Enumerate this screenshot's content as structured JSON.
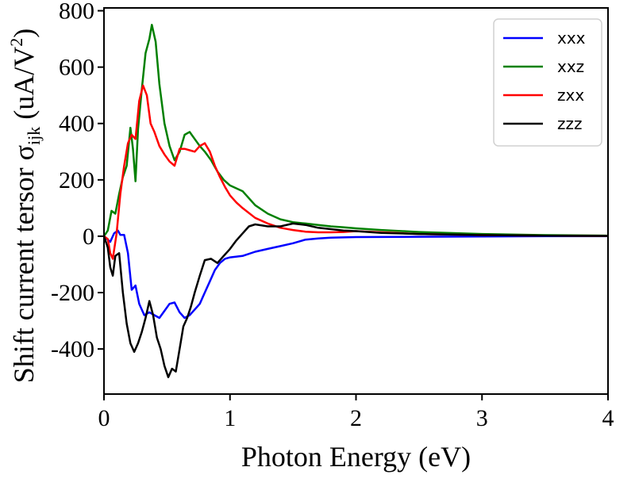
{
  "chart_data": {
    "type": "line",
    "title": "",
    "xlabel": "Photon Energy (eV)",
    "ylabel": {
      "main": "Shift current tersor σ",
      "sub": "ijk",
      "unit_pre": " (uA/V",
      "sup": "2",
      "unit_post": ")"
    },
    "xlim": [
      0,
      4
    ],
    "ylim": [
      -560,
      810
    ],
    "xticks": [
      0,
      1,
      2,
      3,
      4
    ],
    "xtick_labels": [
      "0",
      "1",
      "2",
      "3",
      "4"
    ],
    "yticks": [
      -400,
      -200,
      0,
      200,
      400,
      600,
      800
    ],
    "ytick_labels": [
      "-400",
      "-200",
      "0",
      "200",
      "400",
      "600",
      "800"
    ],
    "grid": false,
    "legend_position": "top-right",
    "series": [
      {
        "name": "xxx",
        "color": "#0000ff",
        "points": [
          [
            0,
            0
          ],
          [
            0.05,
            -20
          ],
          [
            0.08,
            10
          ],
          [
            0.11,
            20
          ],
          [
            0.13,
            5
          ],
          [
            0.16,
            5
          ],
          [
            0.19,
            -60
          ],
          [
            0.22,
            -190
          ],
          [
            0.25,
            -175
          ],
          [
            0.28,
            -240
          ],
          [
            0.32,
            -280
          ],
          [
            0.36,
            -270
          ],
          [
            0.4,
            -280
          ],
          [
            0.44,
            -290
          ],
          [
            0.48,
            -265
          ],
          [
            0.52,
            -240
          ],
          [
            0.56,
            -235
          ],
          [
            0.6,
            -270
          ],
          [
            0.64,
            -290
          ],
          [
            0.68,
            -280
          ],
          [
            0.72,
            -260
          ],
          [
            0.76,
            -240
          ],
          [
            0.8,
            -200
          ],
          [
            0.84,
            -160
          ],
          [
            0.88,
            -120
          ],
          [
            0.92,
            -95
          ],
          [
            0.96,
            -80
          ],
          [
            1.0,
            -75
          ],
          [
            1.1,
            -70
          ],
          [
            1.2,
            -55
          ],
          [
            1.3,
            -45
          ],
          [
            1.4,
            -35
          ],
          [
            1.5,
            -25
          ],
          [
            1.6,
            -12
          ],
          [
            1.7,
            -8
          ],
          [
            1.8,
            -5
          ],
          [
            2.0,
            -3
          ],
          [
            2.5,
            -2
          ],
          [
            3.0,
            -1
          ],
          [
            3.5,
            0
          ],
          [
            4.0,
            0
          ]
        ]
      },
      {
        "name": "xxz",
        "color": "#008000",
        "points": [
          [
            0,
            0
          ],
          [
            0.03,
            20
          ],
          [
            0.06,
            90
          ],
          [
            0.09,
            80
          ],
          [
            0.12,
            150
          ],
          [
            0.15,
            210
          ],
          [
            0.18,
            250
          ],
          [
            0.21,
            385
          ],
          [
            0.23,
            310
          ],
          [
            0.25,
            195
          ],
          [
            0.27,
            380
          ],
          [
            0.3,
            520
          ],
          [
            0.33,
            650
          ],
          [
            0.36,
            700
          ],
          [
            0.38,
            750
          ],
          [
            0.41,
            690
          ],
          [
            0.44,
            540
          ],
          [
            0.48,
            400
          ],
          [
            0.52,
            320
          ],
          [
            0.56,
            270
          ],
          [
            0.6,
            300
          ],
          [
            0.64,
            360
          ],
          [
            0.68,
            370
          ],
          [
            0.72,
            345
          ],
          [
            0.76,
            320
          ],
          [
            0.8,
            300
          ],
          [
            0.85,
            270
          ],
          [
            0.9,
            230
          ],
          [
            0.95,
            200
          ],
          [
            1.0,
            180
          ],
          [
            1.1,
            160
          ],
          [
            1.2,
            110
          ],
          [
            1.3,
            80
          ],
          [
            1.4,
            60
          ],
          [
            1.5,
            50
          ],
          [
            1.6,
            45
          ],
          [
            1.7,
            40
          ],
          [
            1.8,
            35
          ],
          [
            1.9,
            32
          ],
          [
            2.0,
            28
          ],
          [
            2.2,
            22
          ],
          [
            2.5,
            15
          ],
          [
            3.0,
            8
          ],
          [
            3.5,
            4
          ],
          [
            4.0,
            2
          ]
        ]
      },
      {
        "name": "zxx",
        "color": "#ff0000",
        "points": [
          [
            0,
            0
          ],
          [
            0.03,
            -10
          ],
          [
            0.05,
            -60
          ],
          [
            0.07,
            -80
          ],
          [
            0.1,
            10
          ],
          [
            0.13,
            150
          ],
          [
            0.16,
            250
          ],
          [
            0.19,
            330
          ],
          [
            0.22,
            360
          ],
          [
            0.25,
            345
          ],
          [
            0.28,
            480
          ],
          [
            0.31,
            535
          ],
          [
            0.34,
            500
          ],
          [
            0.37,
            400
          ],
          [
            0.4,
            370
          ],
          [
            0.44,
            320
          ],
          [
            0.48,
            290
          ],
          [
            0.52,
            265
          ],
          [
            0.56,
            250
          ],
          [
            0.6,
            310
          ],
          [
            0.64,
            310
          ],
          [
            0.68,
            305
          ],
          [
            0.72,
            300
          ],
          [
            0.76,
            320
          ],
          [
            0.8,
            330
          ],
          [
            0.84,
            300
          ],
          [
            0.88,
            250
          ],
          [
            0.92,
            210
          ],
          [
            0.96,
            175
          ],
          [
            1.0,
            145
          ],
          [
            1.05,
            120
          ],
          [
            1.1,
            100
          ],
          [
            1.2,
            65
          ],
          [
            1.3,
            45
          ],
          [
            1.4,
            30
          ],
          [
            1.5,
            22
          ],
          [
            1.6,
            16
          ],
          [
            1.7,
            14
          ],
          [
            1.8,
            14
          ],
          [
            1.9,
            15
          ],
          [
            2.0,
            18
          ],
          [
            2.2,
            14
          ],
          [
            2.5,
            8
          ],
          [
            3.0,
            4
          ],
          [
            3.5,
            2
          ],
          [
            4.0,
            1
          ]
        ]
      },
      {
        "name": "zzz",
        "color": "#000000",
        "points": [
          [
            0,
            0
          ],
          [
            0.03,
            -40
          ],
          [
            0.05,
            -110
          ],
          [
            0.07,
            -140
          ],
          [
            0.09,
            -70
          ],
          [
            0.12,
            -60
          ],
          [
            0.15,
            -200
          ],
          [
            0.18,
            -310
          ],
          [
            0.21,
            -380
          ],
          [
            0.24,
            -410
          ],
          [
            0.27,
            -380
          ],
          [
            0.3,
            -340
          ],
          [
            0.33,
            -290
          ],
          [
            0.36,
            -230
          ],
          [
            0.39,
            -280
          ],
          [
            0.42,
            -360
          ],
          [
            0.45,
            -400
          ],
          [
            0.48,
            -460
          ],
          [
            0.51,
            -500
          ],
          [
            0.54,
            -470
          ],
          [
            0.57,
            -480
          ],
          [
            0.6,
            -400
          ],
          [
            0.63,
            -320
          ],
          [
            0.66,
            -290
          ],
          [
            0.69,
            -250
          ],
          [
            0.72,
            -200
          ],
          [
            0.76,
            -140
          ],
          [
            0.8,
            -85
          ],
          [
            0.85,
            -80
          ],
          [
            0.9,
            -95
          ],
          [
            0.95,
            -70
          ],
          [
            1.0,
            -45
          ],
          [
            1.05,
            -15
          ],
          [
            1.1,
            10
          ],
          [
            1.15,
            35
          ],
          [
            1.2,
            42
          ],
          [
            1.3,
            35
          ],
          [
            1.4,
            35
          ],
          [
            1.5,
            45
          ],
          [
            1.6,
            40
          ],
          [
            1.7,
            30
          ],
          [
            1.8,
            25
          ],
          [
            1.9,
            20
          ],
          [
            2.0,
            18
          ],
          [
            2.1,
            15
          ],
          [
            2.2,
            12
          ],
          [
            2.5,
            8
          ],
          [
            3.0,
            4
          ],
          [
            3.5,
            2
          ],
          [
            4.0,
            1
          ]
        ]
      }
    ]
  }
}
